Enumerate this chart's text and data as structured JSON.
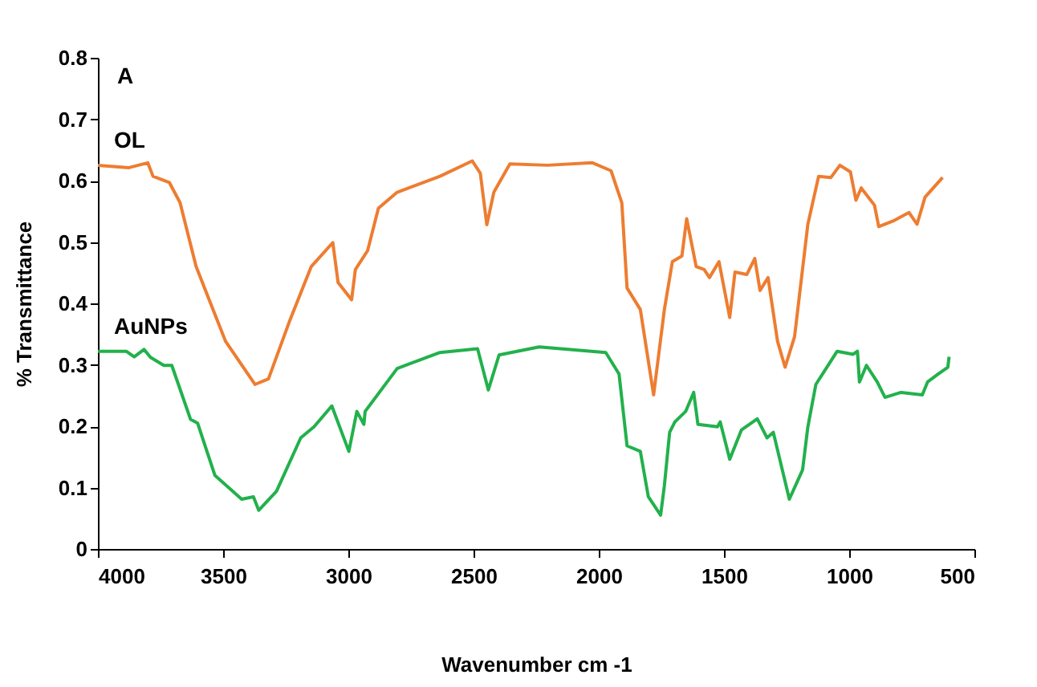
{
  "chart_data": {
    "type": "line",
    "xlabel": "Wavenumber  cm -1",
    "ylabel": "% Transmittance",
    "annotations": [
      "A"
    ],
    "xlim": [
      4000,
      500
    ],
    "xticks": [
      4000,
      3500,
      3000,
      2500,
      2000,
      1500,
      1000,
      500
    ],
    "ylim": [
      0,
      0.8
    ],
    "yticks": [
      0,
      0.1,
      0.2,
      0.3,
      0.4,
      0.5,
      0.6,
      0.7,
      0.8
    ],
    "grid": false,
    "marker": "none",
    "line_style": "solid",
    "series": [
      {
        "name": "OL",
        "color": "#ed7d31",
        "x": [
          4000,
          3876,
          3801,
          3780,
          3715,
          3672,
          3608,
          3490,
          3373,
          3319,
          3233,
          3148,
          3062,
          3041,
          2987,
          2972,
          2923,
          2880,
          2805,
          2634,
          2505,
          2473,
          2447,
          2419,
          2355,
          2205,
          2025,
          1951,
          1908,
          1887,
          1834,
          1781,
          1738,
          1706,
          1668,
          1649,
          1611,
          1579,
          1558,
          1520,
          1477,
          1456,
          1409,
          1377,
          1356,
          1324,
          1286,
          1256,
          1218,
          1165,
          1122,
          1073,
          1037,
          995,
          973,
          952,
          899,
          882,
          825,
          761,
          729,
          697,
          627
        ],
        "values": [
          0.625,
          0.621,
          0.629,
          0.607,
          0.597,
          0.564,
          0.46,
          0.338,
          0.268,
          0.277,
          0.373,
          0.46,
          0.499,
          0.434,
          0.406,
          0.455,
          0.486,
          0.555,
          0.581,
          0.607,
          0.632,
          0.612,
          0.528,
          0.581,
          0.627,
          0.625,
          0.629,
          0.616,
          0.564,
          0.425,
          0.39,
          0.251,
          0.39,
          0.468,
          0.477,
          0.538,
          0.46,
          0.455,
          0.442,
          0.468,
          0.377,
          0.451,
          0.447,
          0.473,
          0.421,
          0.442,
          0.338,
          0.296,
          0.346,
          0.529,
          0.607,
          0.605,
          0.625,
          0.614,
          0.568,
          0.588,
          0.56,
          0.525,
          0.534,
          0.548,
          0.529,
          0.573,
          0.605
        ]
      },
      {
        "name": "AuNPs",
        "color": "#22b14c",
        "x": [
          4000,
          3887,
          3855,
          3816,
          3790,
          3737,
          3705,
          3630,
          3602,
          3533,
          3426,
          3379,
          3358,
          3287,
          3190,
          3137,
          3066,
          2998,
          2966,
          2938,
          2933,
          2805,
          2634,
          2484,
          2441,
          2398,
          2238,
          1972,
          1919,
          1887,
          1834,
          1802,
          1753,
          1738,
          1717,
          1696,
          1653,
          1621,
          1604,
          1526,
          1515,
          1477,
          1430,
          1367,
          1328,
          1303,
          1239,
          1186,
          1165,
          1133,
          1048,
          984,
          967,
          959,
          931,
          888,
          857,
          793,
          708,
          687,
          644,
          606,
          601
        ],
        "values": [
          0.322,
          0.322,
          0.313,
          0.325,
          0.312,
          0.299,
          0.299,
          0.211,
          0.205,
          0.12,
          0.081,
          0.085,
          0.063,
          0.094,
          0.181,
          0.199,
          0.233,
          0.159,
          0.224,
          0.203,
          0.224,
          0.294,
          0.32,
          0.326,
          0.259,
          0.316,
          0.329,
          0.32,
          0.285,
          0.168,
          0.159,
          0.085,
          0.055,
          0.103,
          0.19,
          0.207,
          0.224,
          0.255,
          0.203,
          0.199,
          0.207,
          0.146,
          0.194,
          0.212,
          0.181,
          0.19,
          0.081,
          0.129,
          0.199,
          0.268,
          0.322,
          0.317,
          0.322,
          0.272,
          0.299,
          0.272,
          0.247,
          0.255,
          0.251,
          0.272,
          0.285,
          0.296,
          0.313
        ]
      }
    ]
  }
}
